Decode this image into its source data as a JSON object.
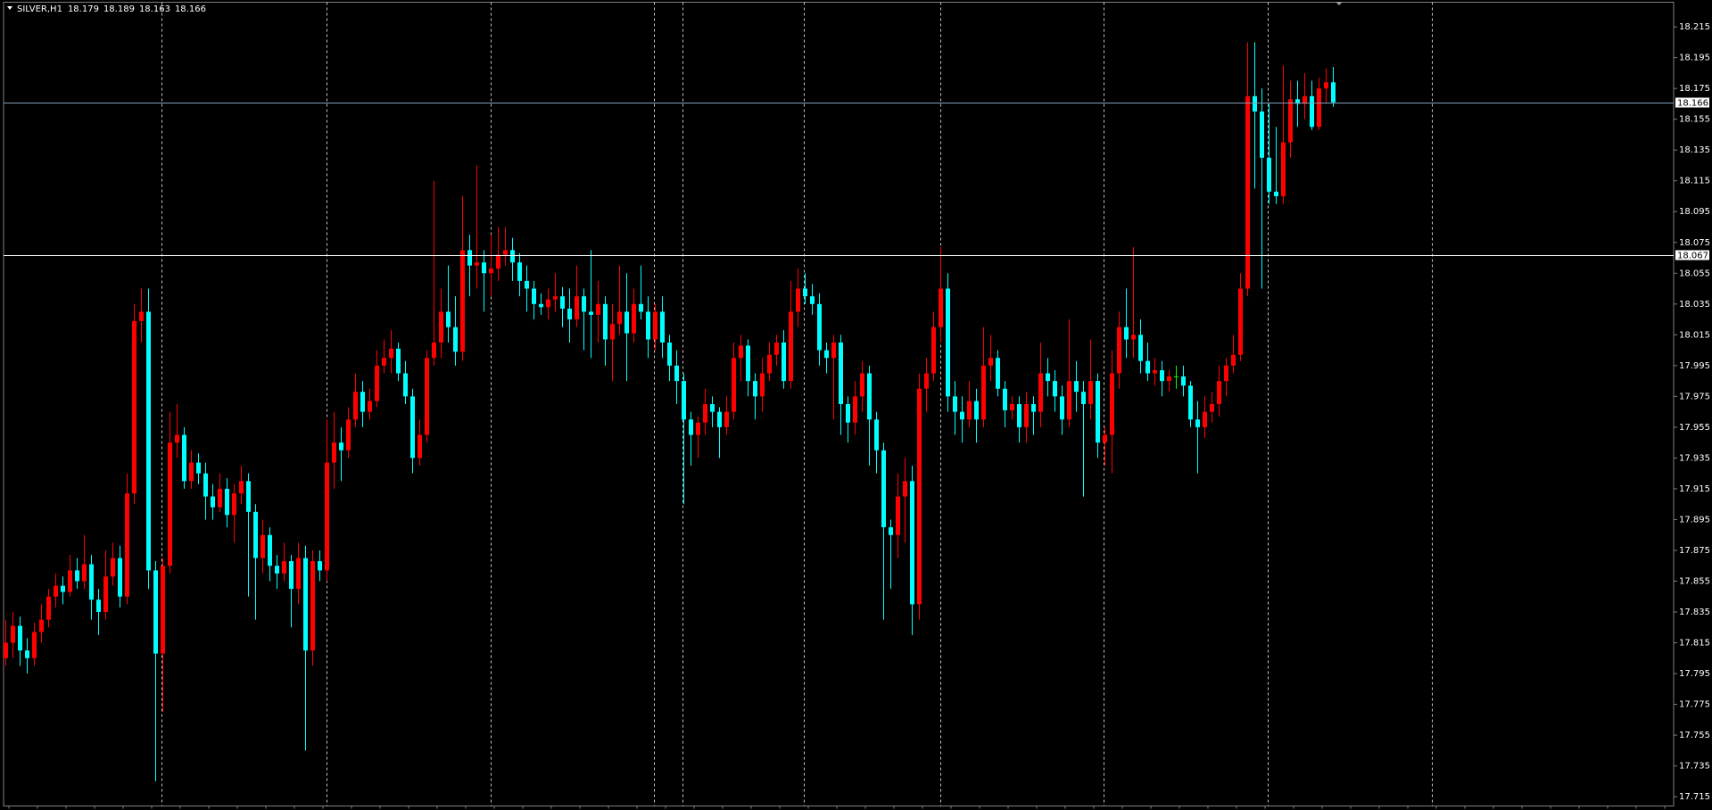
{
  "chart_data": {
    "type": "candlestick",
    "symbol": "SILVER,H1",
    "colors": {
      "up": "#ff0000",
      "down": "#00ffff",
      "doji": "#00ff00",
      "bid_line": "#7f9db9",
      "level_line": "#ffffff"
    },
    "ylim": [
      17.709,
      18.231
    ],
    "yticks": [
      18.215,
      18.195,
      18.175,
      18.155,
      18.135,
      18.115,
      18.095,
      18.075,
      18.055,
      18.035,
      18.015,
      17.995,
      17.975,
      17.955,
      17.935,
      17.915,
      17.895,
      17.875,
      17.855,
      17.835,
      17.815,
      17.795,
      17.775,
      17.755,
      17.735,
      17.715
    ],
    "level": 18.067,
    "ohlc": [
      [
        17.805,
        17.83,
        17.8,
        17.815
      ],
      [
        17.815,
        17.835,
        17.805,
        17.826
      ],
      [
        17.826,
        17.832,
        17.8,
        17.81
      ],
      [
        17.81,
        17.818,
        17.795,
        17.805
      ],
      [
        17.805,
        17.828,
        17.8,
        17.822
      ],
      [
        17.822,
        17.84,
        17.815,
        17.83
      ],
      [
        17.83,
        17.85,
        17.825,
        17.845
      ],
      [
        17.845,
        17.86,
        17.838,
        17.852
      ],
      [
        17.852,
        17.858,
        17.84,
        17.848
      ],
      [
        17.848,
        17.872,
        17.845,
        17.862
      ],
      [
        17.862,
        17.87,
        17.85,
        17.855
      ],
      [
        17.855,
        17.885,
        17.85,
        17.866
      ],
      [
        17.866,
        17.872,
        17.83,
        17.843
      ],
      [
        17.843,
        17.85,
        17.82,
        17.835
      ],
      [
        17.835,
        17.875,
        17.83,
        17.858
      ],
      [
        17.858,
        17.88,
        17.852,
        17.87
      ],
      [
        17.87,
        17.878,
        17.838,
        17.845
      ],
      [
        17.845,
        17.925,
        17.84,
        17.912
      ],
      [
        17.912,
        18.035,
        17.905,
        18.024
      ],
      [
        18.024,
        18.045,
        18.01,
        18.03
      ],
      [
        18.03,
        18.045,
        17.85,
        17.862
      ],
      [
        17.862,
        17.868,
        17.725,
        17.808
      ],
      [
        17.808,
        17.87,
        17.77,
        17.865
      ],
      [
        17.865,
        17.965,
        17.86,
        17.945
      ],
      [
        17.945,
        17.97,
        17.935,
        17.95
      ],
      [
        17.95,
        17.955,
        17.915,
        17.92
      ],
      [
        17.92,
        17.94,
        17.915,
        17.932
      ],
      [
        17.932,
        17.938,
        17.918,
        17.925
      ],
      [
        17.925,
        17.932,
        17.895,
        17.91
      ],
      [
        17.91,
        17.918,
        17.895,
        17.903
      ],
      [
        17.903,
        17.925,
        17.9,
        17.915
      ],
      [
        17.915,
        17.922,
        17.89,
        17.898
      ],
      [
        17.898,
        17.918,
        17.88,
        17.912
      ],
      [
        17.912,
        17.93,
        17.905,
        17.92
      ],
      [
        17.92,
        17.925,
        17.845,
        17.9
      ],
      [
        17.9,
        17.905,
        17.83,
        17.87
      ],
      [
        17.87,
        17.895,
        17.86,
        17.885
      ],
      [
        17.885,
        17.89,
        17.855,
        17.865
      ],
      [
        17.865,
        17.872,
        17.85,
        17.86
      ],
      [
        17.86,
        17.88,
        17.855,
        17.868
      ],
      [
        17.868,
        17.872,
        17.825,
        17.85
      ],
      [
        17.85,
        17.88,
        17.84,
        17.87
      ],
      [
        17.87,
        17.878,
        17.745,
        17.81
      ],
      [
        17.81,
        17.875,
        17.8,
        17.868
      ],
      [
        17.868,
        17.875,
        17.855,
        17.862
      ],
      [
        17.862,
        17.96,
        17.855,
        17.932
      ],
      [
        17.932,
        17.965,
        17.915,
        17.945
      ],
      [
        17.945,
        17.955,
        17.92,
        17.94
      ],
      [
        17.94,
        17.968,
        17.935,
        17.96
      ],
      [
        17.96,
        17.99,
        17.955,
        17.978
      ],
      [
        17.978,
        17.985,
        17.955,
        17.965
      ],
      [
        17.965,
        17.98,
        17.96,
        17.972
      ],
      [
        17.972,
        18.005,
        17.968,
        17.995
      ],
      [
        17.995,
        18.012,
        17.99,
        18.0
      ],
      [
        18.0,
        18.018,
        17.99,
        18.006
      ],
      [
        18.006,
        18.01,
        17.985,
        17.99
      ],
      [
        17.99,
        17.998,
        17.97,
        17.975
      ],
      [
        17.975,
        17.98,
        17.925,
        17.935
      ],
      [
        17.935,
        17.96,
        17.93,
        17.95
      ],
      [
        17.95,
        18.005,
        17.945,
        18.0
      ],
      [
        18.0,
        18.115,
        17.995,
        18.01
      ],
      [
        18.01,
        18.045,
        18.0,
        18.03
      ],
      [
        18.03,
        18.06,
        18.01,
        18.02
      ],
      [
        18.02,
        18.04,
        17.995,
        18.004
      ],
      [
        18.004,
        18.105,
        17.998,
        18.07
      ],
      [
        18.07,
        18.08,
        18.04,
        18.06
      ],
      [
        18.06,
        18.125,
        18.045,
        18.062
      ],
      [
        18.062,
        18.07,
        18.03,
        18.055
      ],
      [
        18.055,
        18.08,
        18.04,
        18.058
      ],
      [
        18.058,
        18.085,
        18.05,
        18.067
      ],
      [
        18.067,
        18.085,
        18.06,
        18.07
      ],
      [
        18.07,
        18.078,
        18.05,
        18.062
      ],
      [
        18.062,
        18.068,
        18.04,
        18.05
      ],
      [
        18.05,
        18.06,
        18.03,
        18.045
      ],
      [
        18.045,
        18.05,
        18.025,
        18.035
      ],
      [
        18.035,
        18.042,
        18.028,
        18.033
      ],
      [
        18.033,
        18.045,
        18.025,
        18.038
      ],
      [
        18.038,
        18.055,
        18.03,
        18.04
      ],
      [
        18.04,
        18.046,
        18.02,
        18.032
      ],
      [
        18.032,
        18.045,
        18.01,
        18.025
      ],
      [
        18.025,
        18.06,
        18.02,
        18.04
      ],
      [
        18.04,
        18.045,
        18.005,
        18.03
      ],
      [
        18.03,
        18.07,
        18.0,
        18.028
      ],
      [
        18.028,
        18.05,
        18.01,
        18.035
      ],
      [
        18.035,
        18.04,
        17.995,
        18.012
      ],
      [
        18.012,
        18.035,
        17.985,
        18.022
      ],
      [
        18.022,
        18.06,
        18.015,
        18.03
      ],
      [
        18.03,
        18.055,
        17.985,
        18.016
      ],
      [
        18.016,
        18.045,
        18.01,
        18.035
      ],
      [
        18.035,
        18.06,
        18.025,
        18.03
      ],
      [
        18.03,
        18.04,
        18.0,
        18.012
      ],
      [
        18.012,
        18.035,
        18.005,
        18.03
      ],
      [
        18.03,
        18.04,
        18.0,
        18.01
      ],
      [
        18.01,
        18.015,
        17.985,
        17.995
      ],
      [
        17.995,
        18.005,
        17.97,
        17.985
      ],
      [
        17.985,
        17.99,
        17.905,
        17.96
      ],
      [
        17.96,
        17.965,
        17.93,
        17.95
      ],
      [
        17.95,
        17.962,
        17.935,
        17.958
      ],
      [
        17.958,
        17.98,
        17.95,
        17.97
      ],
      [
        17.97,
        17.975,
        17.955,
        17.965
      ],
      [
        17.965,
        17.968,
        17.935,
        17.955
      ],
      [
        17.955,
        17.975,
        17.95,
        17.965
      ],
      [
        17.965,
        18.01,
        17.96,
        18.0
      ],
      [
        18.0,
        18.015,
        17.985,
        18.008
      ],
      [
        18.008,
        18.012,
        17.975,
        17.985
      ],
      [
        17.985,
        17.99,
        17.96,
        17.975
      ],
      [
        17.975,
        18.0,
        17.965,
        17.99
      ],
      [
        17.99,
        18.01,
        17.985,
        18.002
      ],
      [
        18.002,
        18.015,
        17.995,
        18.01
      ],
      [
        18.01,
        18.018,
        17.98,
        17.985
      ],
      [
        17.985,
        18.05,
        17.98,
        18.03
      ],
      [
        18.03,
        18.058,
        18.02,
        18.045
      ],
      [
        18.045,
        18.055,
        18.035,
        18.04
      ],
      [
        18.04,
        18.048,
        18.028,
        18.035
      ],
      [
        18.035,
        18.042,
        17.995,
        18.005
      ],
      [
        18.005,
        18.01,
        17.99,
        18.0
      ],
      [
        18.0,
        18.015,
        17.96,
        18.01
      ],
      [
        18.01,
        18.015,
        17.95,
        17.97
      ],
      [
        17.97,
        17.975,
        17.945,
        17.958
      ],
      [
        17.958,
        17.985,
        17.95,
        17.975
      ],
      [
        17.975,
        17.998,
        17.965,
        17.99
      ],
      [
        17.99,
        17.995,
        17.93,
        17.96
      ],
      [
        17.96,
        17.965,
        17.925,
        17.94
      ],
      [
        17.94,
        17.945,
        17.83,
        17.89
      ],
      [
        17.89,
        17.895,
        17.85,
        17.885
      ],
      [
        17.885,
        17.925,
        17.87,
        17.91
      ],
      [
        17.91,
        17.935,
        17.88,
        17.92
      ],
      [
        17.92,
        17.93,
        17.82,
        17.84
      ],
      [
        17.84,
        17.99,
        17.83,
        17.98
      ],
      [
        17.98,
        18.0,
        17.965,
        17.99
      ],
      [
        17.99,
        18.03,
        17.985,
        18.02
      ],
      [
        18.02,
        18.072,
        18.01,
        18.045
      ],
      [
        18.045,
        18.055,
        17.965,
        17.975
      ],
      [
        17.975,
        17.985,
        17.95,
        17.965
      ],
      [
        17.965,
        17.975,
        17.945,
        17.96
      ],
      [
        17.96,
        17.985,
        17.955,
        17.972
      ],
      [
        17.972,
        17.98,
        17.945,
        17.96
      ],
      [
        17.96,
        18.02,
        17.955,
        17.995
      ],
      [
        17.995,
        18.015,
        17.985,
        18.0
      ],
      [
        18.0,
        18.005,
        17.975,
        17.98
      ],
      [
        17.98,
        17.985,
        17.955,
        17.966
      ],
      [
        17.966,
        17.975,
        17.96,
        17.97
      ],
      [
        17.97,
        17.975,
        17.945,
        17.955
      ],
      [
        17.955,
        17.978,
        17.945,
        17.97
      ],
      [
        17.97,
        17.975,
        17.95,
        17.965
      ],
      [
        17.965,
        18.01,
        17.955,
        17.99
      ],
      [
        17.99,
        18.0,
        17.975,
        17.985
      ],
      [
        17.985,
        17.992,
        17.965,
        17.975
      ],
      [
        17.975,
        17.982,
        17.95,
        17.96
      ],
      [
        17.96,
        18.025,
        17.955,
        17.985
      ],
      [
        17.985,
        17.998,
        17.965,
        17.978
      ],
      [
        17.978,
        17.985,
        17.91,
        17.97
      ],
      [
        17.97,
        18.012,
        17.96,
        17.985
      ],
      [
        17.985,
        17.99,
        17.935,
        17.945
      ],
      [
        17.945,
        17.955,
        17.93,
        17.95
      ],
      [
        17.95,
        18.005,
        17.925,
        17.99
      ],
      [
        17.99,
        18.03,
        17.98,
        18.02
      ],
      [
        18.02,
        18.045,
        18.0,
        18.012
      ],
      [
        18.012,
        18.072,
        18.0,
        18.015
      ],
      [
        18.015,
        18.025,
        17.99,
        17.998
      ],
      [
        17.998,
        18.01,
        17.985,
        17.99
      ],
      [
        17.99,
        18.0,
        17.982,
        17.992
      ],
      [
        17.992,
        17.998,
        17.975,
        17.985
      ],
      [
        17.985,
        17.992,
        17.978,
        17.988
      ],
      [
        17.988,
        17.995,
        17.98,
        17.988
      ],
      [
        17.988,
        17.995,
        17.975,
        17.982
      ],
      [
        17.982,
        17.985,
        17.955,
        17.96
      ],
      [
        17.96,
        17.972,
        17.925,
        17.955
      ],
      [
        17.955,
        17.975,
        17.948,
        17.965
      ],
      [
        17.965,
        17.978,
        17.958,
        17.97
      ],
      [
        17.97,
        17.995,
        17.962,
        17.985
      ],
      [
        17.985,
        18.0,
        17.975,
        17.995
      ],
      [
        17.995,
        18.015,
        17.99,
        18.002
      ],
      [
        18.002,
        18.055,
        17.998,
        18.045
      ],
      [
        18.045,
        18.205,
        18.04,
        18.17
      ],
      [
        18.17,
        18.205,
        18.11,
        18.16
      ],
      [
        18.16,
        18.175,
        18.045,
        18.13
      ],
      [
        18.13,
        18.165,
        18.1,
        18.108
      ],
      [
        18.108,
        18.15,
        18.1,
        18.105
      ],
      [
        18.105,
        18.19,
        18.1,
        18.14
      ],
      [
        18.14,
        18.18,
        18.13,
        18.168
      ],
      [
        18.168,
        18.18,
        18.15,
        18.165
      ],
      [
        18.165,
        18.185,
        18.155,
        18.17
      ],
      [
        18.17,
        18.18,
        18.148,
        18.15
      ],
      [
        18.15,
        18.182,
        18.148,
        18.175
      ],
      [
        18.175,
        18.188,
        18.165,
        18.179
      ],
      [
        18.179,
        18.189,
        18.163,
        18.166
      ]
    ]
  }
}
